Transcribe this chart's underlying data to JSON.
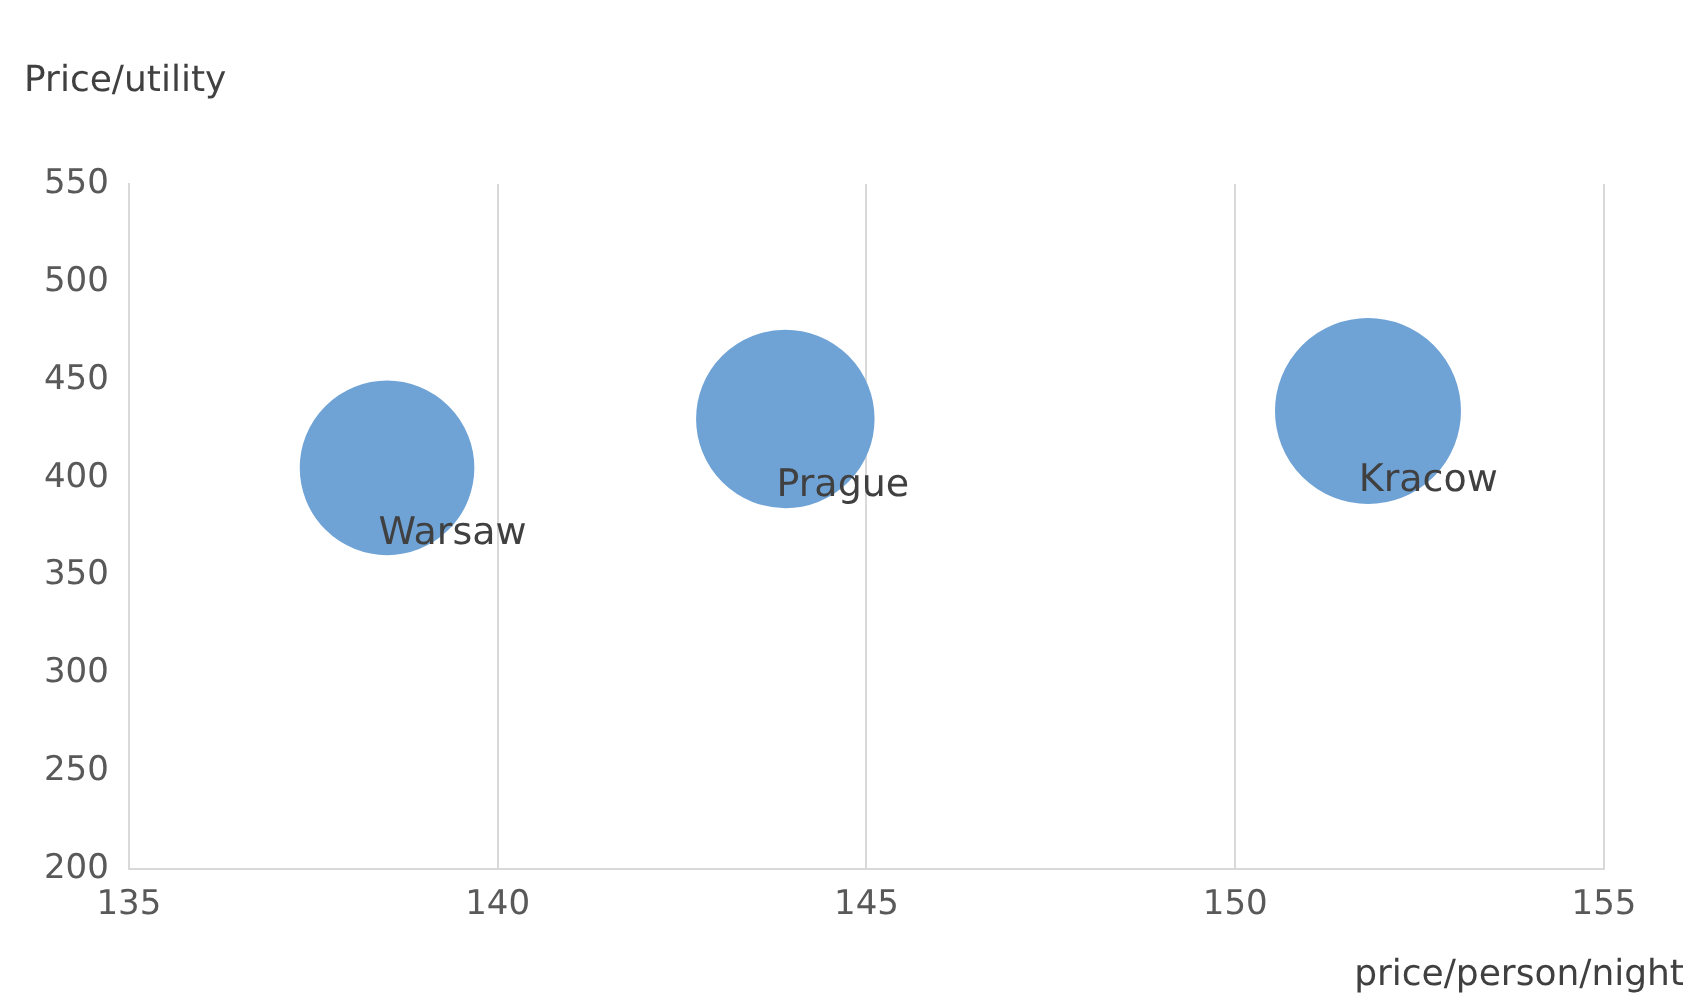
{
  "chart_data": {
    "type": "bubble",
    "ylabel": "Price/utility",
    "xlabel": "price/person/night",
    "xlim": [
      135,
      155
    ],
    "xticks": [
      135,
      140,
      145,
      150,
      155
    ],
    "ylim": [
      200,
      550
    ],
    "yticks": [
      200,
      250,
      300,
      350,
      400,
      450,
      500,
      550
    ],
    "grid": "x",
    "legend": false,
    "series": [
      {
        "name": "Warsaw",
        "color": "#6fa3d6",
        "x": [
          138.5
        ],
        "values": [
          405
        ],
        "sizes": [
          0.88
        ]
      },
      {
        "name": "Prague",
        "color": "#6fa3d6",
        "x": [
          143.9
        ],
        "values": [
          430
        ],
        "sizes": [
          0.92
        ]
      },
      {
        "name": "Kracow",
        "color": "#6fa3d6",
        "x": [
          151.8
        ],
        "values": [
          434
        ],
        "sizes": [
          1
        ]
      }
    ]
  }
}
